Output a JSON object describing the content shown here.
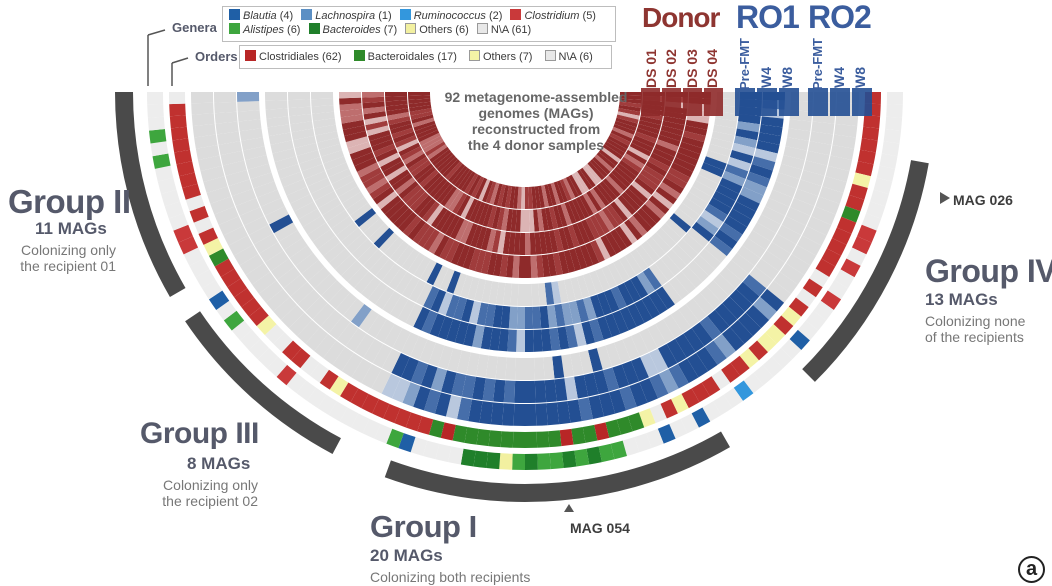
{
  "legend": {
    "genera_label": "Genera",
    "orders_label": "Orders",
    "genera": [
      {
        "name": "Blautia",
        "count": "(4)",
        "color": "#1f5fa6",
        "italic": true
      },
      {
        "name": "Lachnospira",
        "count": "(1)",
        "color": "#5b8fc4",
        "italic": true
      },
      {
        "name": "Ruminococcus",
        "count": "(2)",
        "color": "#3397dd",
        "italic": true
      },
      {
        "name": "Clostridium",
        "count": "(5)",
        "color": "#c9393a",
        "italic": true
      },
      {
        "name": "Alistipes",
        "count": "(6)",
        "color": "#3ea63e",
        "italic": true
      },
      {
        "name": "Bacteroides",
        "count": "(7)",
        "color": "#1f7f2a",
        "italic": true
      },
      {
        "name": "Others",
        "count": "(6)",
        "color": "#f2f0a0",
        "italic": false
      },
      {
        "name": "N\\A",
        "count": "(61)",
        "color": "#e8e8e8",
        "italic": false
      }
    ],
    "orders": [
      {
        "name": "Clostridiales",
        "count": "(62)",
        "color": "#b82626"
      },
      {
        "name": "Bacteroidales",
        "count": "(17)",
        "color": "#2f8a2a"
      },
      {
        "name": "Others",
        "count": "(7)",
        "color": "#f4f3a6"
      },
      {
        "name": "N\\A",
        "count": "(6)",
        "color": "#e8e8e8"
      }
    ]
  },
  "header": {
    "donor": "Donor",
    "ro1": "RO1",
    "ro2": "RO2",
    "donor_samples": [
      "DS 01",
      "DS 02",
      "DS 03",
      "DS 04"
    ],
    "ro1_samples": [
      "Pre-FMT",
      "W4",
      "W8"
    ],
    "ro2_samples": [
      "Pre-FMT",
      "W4",
      "W8"
    ]
  },
  "center_text": [
    "92 metagenome-assembled",
    "genomes (MAGs)",
    "reconstructed from",
    "the 4 donor samples"
  ],
  "groups": [
    {
      "title": "Group I",
      "count": "20 MAGs",
      "desc": [
        "Colonizing both recipients"
      ]
    },
    {
      "title": "Group II",
      "count": "11 MAGs",
      "desc": [
        "Colonizing only",
        "the recipient 01"
      ]
    },
    {
      "title": "Group III",
      "count": "8 MAGs",
      "desc": [
        "Colonizing only",
        "the recipient 02"
      ]
    },
    {
      "title": "Group IV",
      "count": "13 MAGs",
      "desc": [
        "Colonizing none",
        "of the recipients"
      ]
    }
  ],
  "mag_labels": {
    "mag_026": "MAG 026",
    "mag_054": "MAG 054"
  },
  "panel_letter": "a",
  "colors": {
    "donor_dark": "#8e2a2a",
    "recipient_blue": "#234f93",
    "empty": "#dcdcdc",
    "group_arc": "#4a4a4a",
    "group_text": "#55596a"
  }
}
